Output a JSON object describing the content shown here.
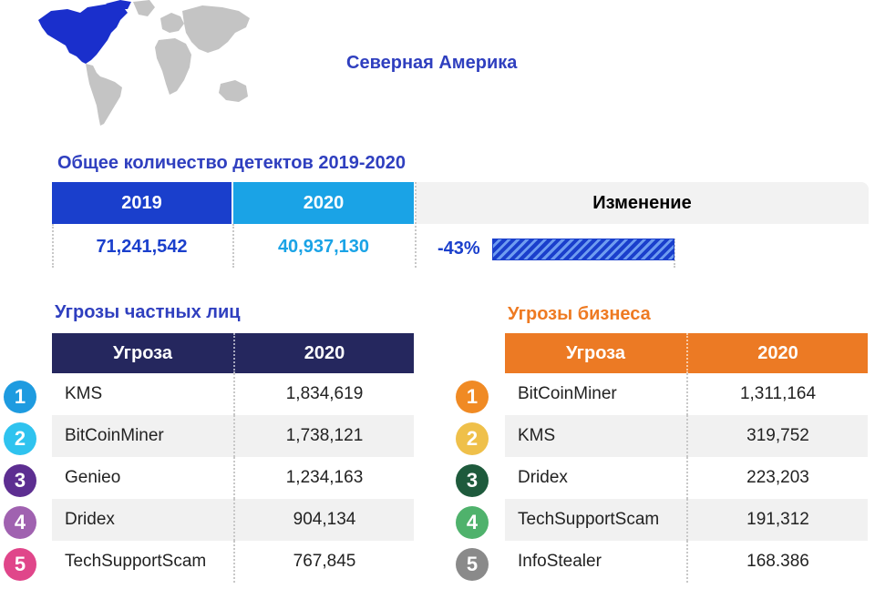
{
  "region_title": "Северная Америка",
  "totals": {
    "title": "Общее количество детектов 2019-2020",
    "col_2019": "2019",
    "col_2020": "2020",
    "col_change": "Изменение",
    "value_2019": "71,241,542",
    "value_2020": "40,937,130",
    "change": "-43%"
  },
  "private": {
    "title": "Угрозы частных лиц",
    "col_threat": "Угроза",
    "col_year": "2020",
    "rows": [
      {
        "rank": "1",
        "name": "KMS",
        "value": "1,834,619",
        "color": "#1e9be0"
      },
      {
        "rank": "2",
        "name": "BitCoinMiner",
        "value": "1,738,121",
        "color": "#2fc3ef"
      },
      {
        "rank": "3",
        "name": "Genieo",
        "value": "1,234,163",
        "color": "#5d2e91"
      },
      {
        "rank": "4",
        "name": "Dridex",
        "value": "904,134",
        "color": "#a062b0"
      },
      {
        "rank": "5",
        "name": "TechSupportScam",
        "value": "767,845",
        "color": "#e0468a"
      }
    ]
  },
  "business": {
    "title": "Угрозы бизнеса",
    "col_threat": "Угроза",
    "col_year": "2020",
    "rows": [
      {
        "rank": "1",
        "name": "BitCoinMiner",
        "value": "1,311,164",
        "color": "#f08a24"
      },
      {
        "rank": "2",
        "name": "KMS",
        "value": "319,752",
        "color": "#efc04a"
      },
      {
        "rank": "3",
        "name": "Dridex",
        "value": "223,203",
        "color": "#1e5a3c"
      },
      {
        "rank": "4",
        "name": "TechSupportScam",
        "value": "191,312",
        "color": "#4fb26c"
      },
      {
        "rank": "5",
        "name": "InfoStealer",
        "value": "168.386",
        "color": "#8a8a8a"
      }
    ]
  }
}
